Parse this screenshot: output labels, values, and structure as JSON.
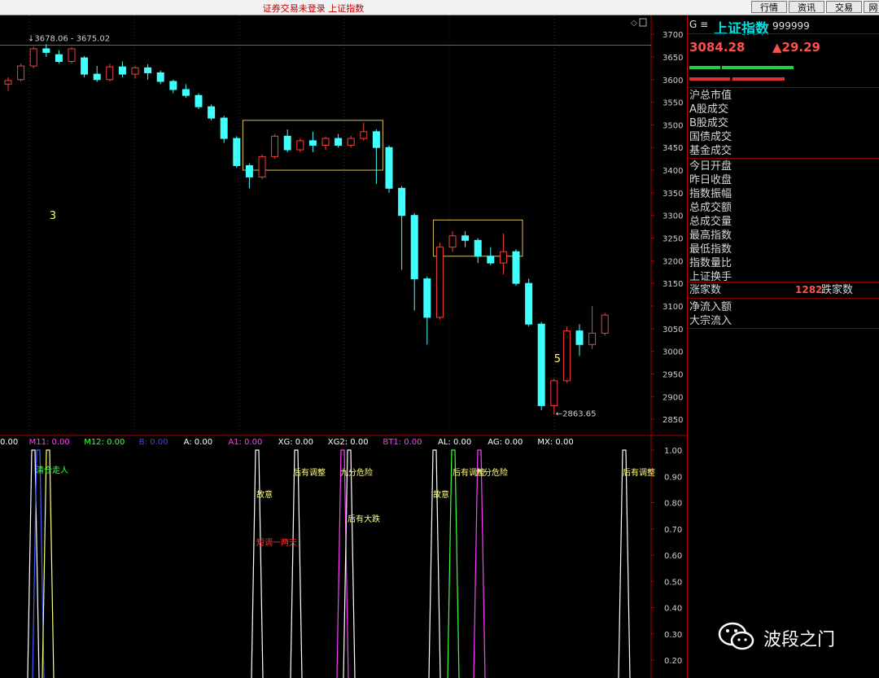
{
  "window": {
    "title": "证券交易未登录  上证指数",
    "buttons": [
      "行情",
      "资讯",
      "交易",
      "网"
    ]
  },
  "chart_data": {
    "type": "candlestick",
    "y_ticks": [
      3700,
      3650,
      3600,
      3550,
      3500,
      3450,
      3400,
      3350,
      3300,
      3250,
      3200,
      3150,
      3100,
      3050,
      3000,
      2950,
      2900,
      2850
    ],
    "ylim": [
      2825,
      3720
    ],
    "high_label": "3678.06 - 3675.02",
    "low_label": "2863.65",
    "wave_labels": [
      {
        "text": "3",
        "x_index": 3,
        "y": 3292
      },
      {
        "text": "5",
        "x_index": 43,
        "y": 2976
      }
    ],
    "candles": [
      [
        3590,
        3598,
        3575,
        3605
      ],
      [
        3600,
        3630,
        3596,
        3635
      ],
      [
        3630,
        3668,
        3625,
        3672
      ],
      [
        3668,
        3660,
        3650,
        3678
      ],
      [
        3655,
        3640,
        3635,
        3665
      ],
      [
        3640,
        3668,
        3635,
        3672
      ],
      [
        3648,
        3612,
        3605,
        3652
      ],
      [
        3612,
        3600,
        3595,
        3630
      ],
      [
        3600,
        3628,
        3596,
        3635
      ],
      [
        3628,
        3612,
        3605,
        3640
      ],
      [
        3612,
        3626,
        3602,
        3630
      ],
      [
        3626,
        3615,
        3600,
        3634
      ],
      [
        3615,
        3596,
        3590,
        3620
      ],
      [
        3596,
        3578,
        3570,
        3600
      ],
      [
        3578,
        3565,
        3560,
        3590
      ],
      [
        3565,
        3540,
        3535,
        3570
      ],
      [
        3540,
        3515,
        3510,
        3545
      ],
      [
        3515,
        3470,
        3460,
        3520
      ],
      [
        3470,
        3410,
        3405,
        3475
      ],
      [
        3410,
        3385,
        3360,
        3415
      ],
      [
        3385,
        3430,
        3380,
        3435
      ],
      [
        3430,
        3475,
        3425,
        3480
      ],
      [
        3475,
        3445,
        3440,
        3490
      ],
      [
        3445,
        3465,
        3440,
        3470
      ],
      [
        3465,
        3455,
        3440,
        3485
      ],
      [
        3455,
        3470,
        3445,
        3475
      ],
      [
        3470,
        3455,
        3450,
        3480
      ],
      [
        3455,
        3470,
        3450,
        3476
      ],
      [
        3470,
        3485,
        3465,
        3505
      ],
      [
        3485,
        3450,
        3370,
        3490
      ],
      [
        3450,
        3360,
        3350,
        3455
      ],
      [
        3360,
        3300,
        3180,
        3365
      ],
      [
        3300,
        3160,
        3090,
        3305
      ],
      [
        3160,
        3075,
        3015,
        3165
      ],
      [
        3075,
        3230,
        3070,
        3240
      ],
      [
        3230,
        3255,
        3220,
        3265
      ],
      [
        3255,
        3245,
        3230,
        3265
      ],
      [
        3245,
        3210,
        3195,
        3250
      ],
      [
        3210,
        3195,
        3190,
        3230
      ],
      [
        3195,
        3220,
        3170,
        3260
      ],
      [
        3220,
        3150,
        3145,
        3225
      ],
      [
        3150,
        3060,
        3055,
        3160
      ],
      [
        3060,
        2880,
        2870,
        3065
      ],
      [
        2880,
        2935,
        2860,
        2940
      ],
      [
        2935,
        3045,
        2930,
        3055
      ],
      [
        3045,
        3015,
        2990,
        3060
      ],
      [
        3015,
        3040,
        3005,
        3100
      ],
      [
        3040,
        3080,
        3035,
        3085
      ]
    ],
    "boxes": [
      {
        "x1": 3400,
        "x2": 3510,
        "from": 19,
        "to": 29
      },
      {
        "x1": 3210,
        "x2": 3290,
        "from": 34,
        "to": 40
      }
    ],
    "indicator": {
      "legend": [
        {
          "text": "0.00",
          "color": "#ffffff"
        },
        {
          "text": "M11: 0.00",
          "color": "#ff40ff"
        },
        {
          "text": "M12: 0.00",
          "color": "#40ff40"
        },
        {
          "text": "B: 0.00",
          "color": "#4040ff"
        },
        {
          "text": "A: 0.00",
          "color": "#ffffff"
        },
        {
          "text": "A1: 0.00",
          "color": "#ff40ff"
        },
        {
          "text": "XG: 0.00",
          "color": "#ffffff"
        },
        {
          "text": "XG2: 0.00",
          "color": "#ffffff"
        },
        {
          "text": "BT1: 0.00",
          "color": "#ff40ff"
        },
        {
          "text": "AL: 0.00",
          "color": "#ffffff"
        },
        {
          "text": "AG: 0.00",
          "color": "#ffffff"
        },
        {
          "text": "MX: 0.00",
          "color": "#ffffff"
        }
      ],
      "y_ticks": [
        1.0,
        0.9,
        0.8,
        0.7,
        0.6,
        0.5,
        0.4,
        0.3,
        0.2
      ],
      "signals": [
        {
          "text": "清仓走人",
          "color": "#40ff40"
        },
        {
          "text": "故意",
          "color": "#ffff80"
        },
        {
          "text": "短调一两天",
          "color": "#ff3030"
        },
        {
          "text": "后有调整",
          "color": "#ffff80"
        },
        {
          "text": "九分危险",
          "color": "#ffff80"
        },
        {
          "text": "后有大跌",
          "color": "#ffff80"
        },
        {
          "text": "故意",
          "color": "#ffff80"
        },
        {
          "text": "后有调整",
          "color": "#ffff80"
        },
        {
          "text": "九分危险",
          "color": "#ffff80"
        },
        {
          "text": "后有调整",
          "color": "#ffff80"
        }
      ]
    }
  },
  "info_panel": {
    "g_mark": "G ≡",
    "index_name": "上证指数",
    "index_code": "999999",
    "price": "3084.28",
    "change": "▲29.29",
    "rows": [
      "沪总市值",
      "A股成交",
      "B股成交",
      "国债成交",
      "基金成交",
      "今日开盘",
      "昨日收盘",
      "指数振幅",
      "总成交额",
      "总成交量",
      "最高指数",
      "最低指数",
      "指数量比",
      "上证换手"
    ],
    "advance_label": "涨家数",
    "advance_value": "1282",
    "decline_label": "跌家数",
    "flow_rows": [
      "净流入额",
      "大宗流入"
    ]
  },
  "watermark": {
    "text": "波段之门"
  }
}
